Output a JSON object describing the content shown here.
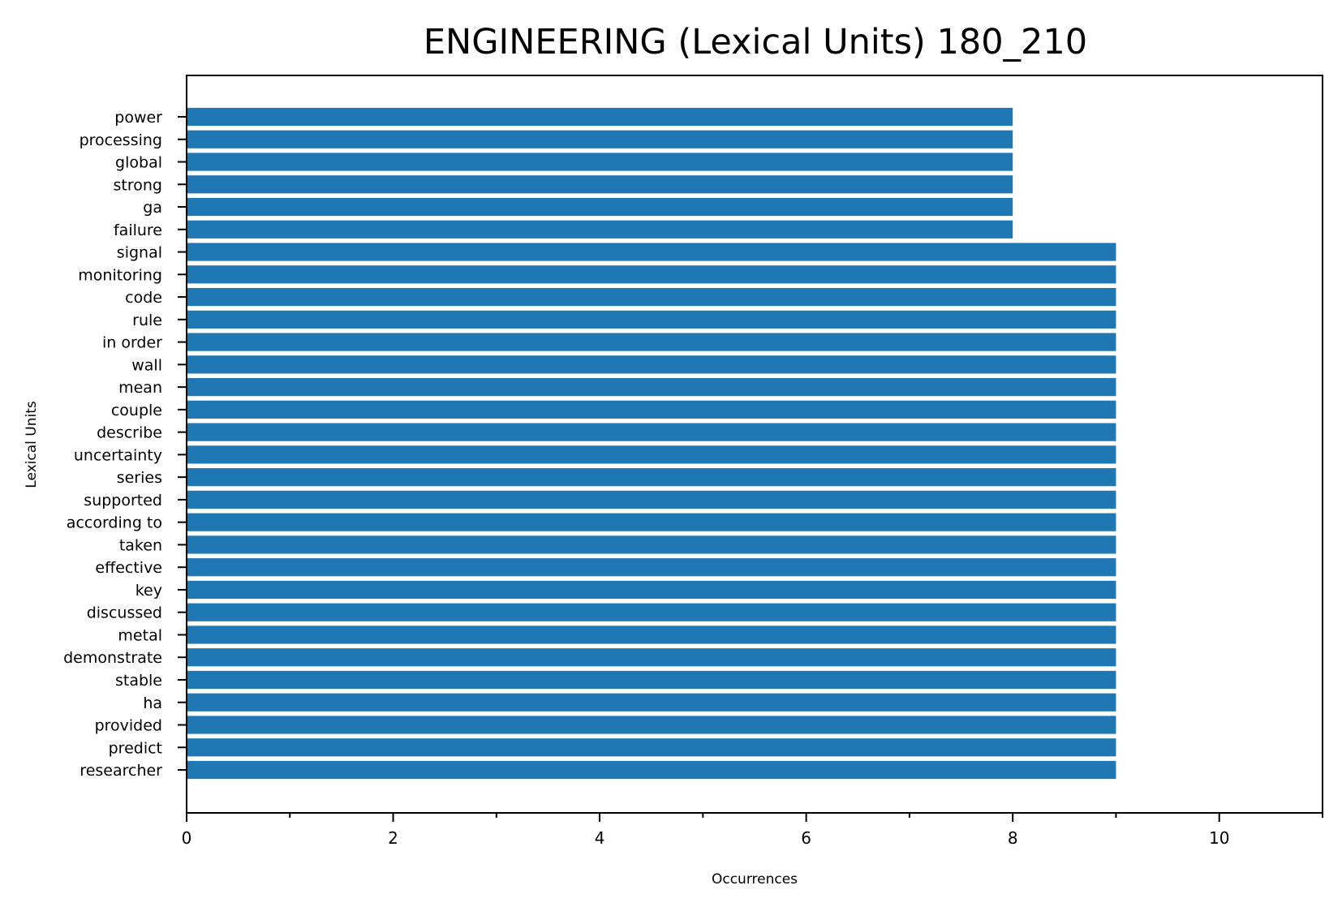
{
  "chart_data": {
    "type": "bar",
    "orientation": "horizontal",
    "title": "ENGINEERING (Lexical Units) 180_210",
    "xlabel": "Occurrences",
    "ylabel": "Lexical Units",
    "xlim": [
      0,
      11
    ],
    "xticks": [
      0,
      2,
      4,
      6,
      8,
      10
    ],
    "grid": false,
    "bar_color": "#1f77b4",
    "categories": [
      "power",
      "processing",
      "global",
      "strong",
      "ga",
      "failure",
      "signal",
      "monitoring",
      "code",
      "rule",
      "in order",
      "wall",
      "mean",
      "couple",
      "describe",
      "uncertainty",
      "series",
      "supported",
      "according to",
      "taken",
      "effective",
      "key",
      "discussed",
      "metal",
      "demonstrate",
      "stable",
      "ha",
      "provided",
      "predict",
      "researcher"
    ],
    "values": [
      8,
      8,
      8,
      8,
      8,
      8,
      9,
      9,
      9,
      9,
      9,
      9,
      9,
      9,
      9,
      9,
      9,
      9,
      9,
      9,
      9,
      9,
      9,
      9,
      9,
      9,
      9,
      9,
      9,
      9
    ]
  }
}
